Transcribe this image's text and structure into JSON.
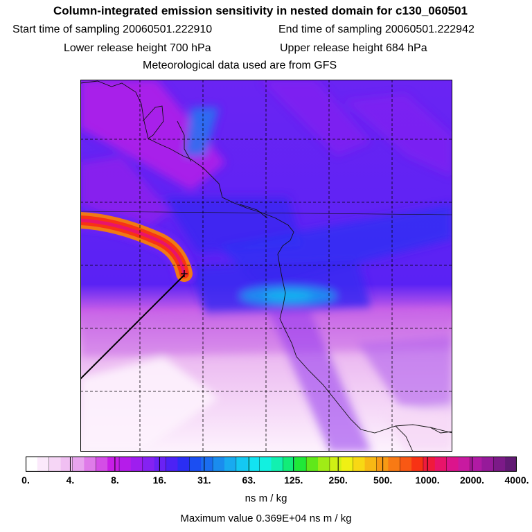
{
  "header": {
    "title": "Column-integrated emission sensitivity in nested domain for c130_060501",
    "start_label": "Start time of sampling 20060501.222910",
    "end_label": "End time of sampling 20060501.222942",
    "lower_label": "Lower release height  700 hPa",
    "upper_label": "Upper release height  684 hPa",
    "met_label": "Meteorological data used are from GFS"
  },
  "colorbar": {
    "tick_labels": [
      "0.",
      "4.",
      "8.",
      "16.",
      "31.",
      "63.",
      "125.",
      "250.",
      "500.",
      "1000.",
      "2000.",
      "4000."
    ],
    "units": "ns m / kg",
    "colors": [
      "#ffffff",
      "#fbe9fb",
      "#f6d6f6",
      "#f0bff2",
      "#e8a4ee",
      "#df7be9",
      "#d44ee6",
      "#c81ee6",
      "#b51cea",
      "#9e1eef",
      "#8522f2",
      "#6a22f4",
      "#4c22f5",
      "#2a2ef4",
      "#1b4ef2",
      "#1a6df0",
      "#1a8cee",
      "#18aaf0",
      "#14c8f2",
      "#12e3f2",
      "#12f0e0",
      "#12f0b0",
      "#12ec78",
      "#20e838",
      "#60e81a",
      "#a0ec16",
      "#d0f014",
      "#f0f014",
      "#f8d814",
      "#f8b814",
      "#f89a14",
      "#f87a14",
      "#f85814",
      "#f83214",
      "#f01a3c",
      "#e8146a",
      "#dc148c",
      "#c81aa0",
      "#b01aa4",
      "#961a9a",
      "#7c1a88",
      "#621a74"
    ]
  },
  "map": {
    "release_point_marker": "+",
    "background_colors": {
      "deep_blue": "#3a28f0",
      "violet": "#7a24f2",
      "magenta": "#c01ee6",
      "light_pink": "#f2c8f4",
      "pale": "#fbecfb",
      "cyan_blue": "#1e8cf0"
    }
  },
  "footer": {
    "max_value": "Maximum value  0.369E+04 ns m / kg"
  }
}
